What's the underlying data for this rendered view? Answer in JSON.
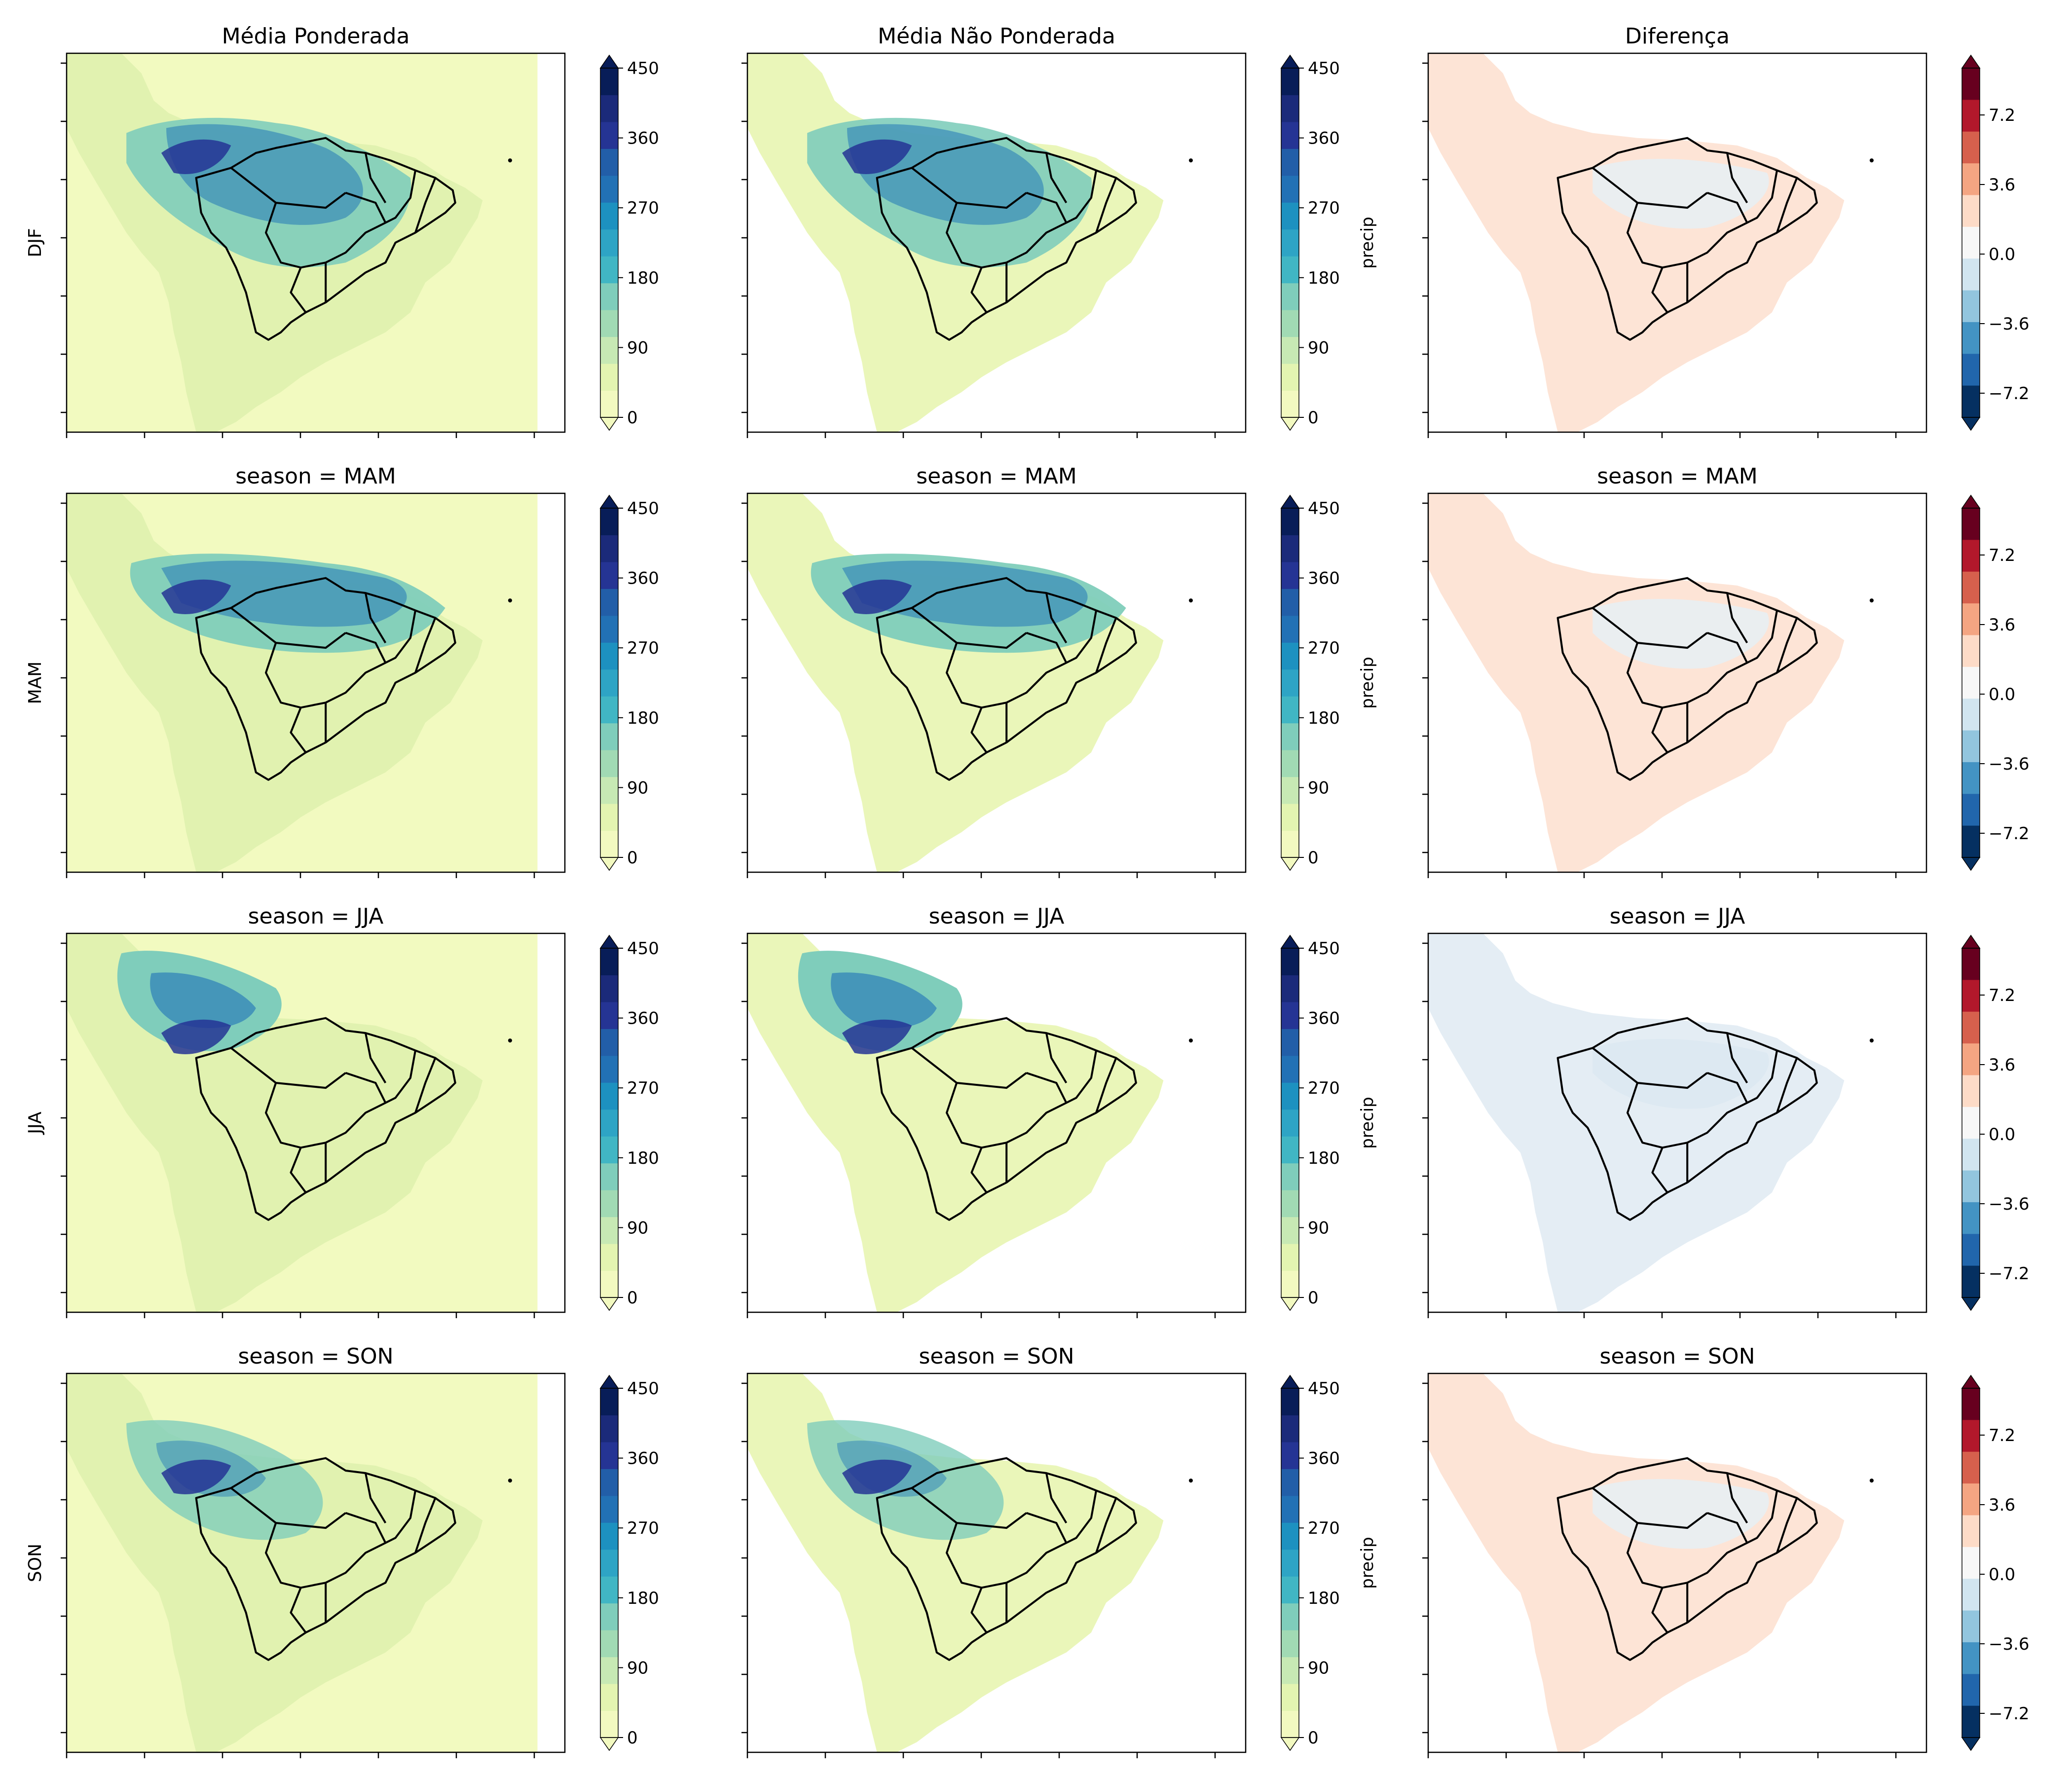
{
  "figure": {
    "column_titles": [
      "Média Ponderada",
      "Média Não Ponderada",
      "Diferença"
    ],
    "rows": [
      {
        "season": "DJF",
        "row_label": "DJF",
        "panel_title": ""
      },
      {
        "season": "MAM",
        "row_label": "MAM",
        "panel_title": "season = MAM"
      },
      {
        "season": "JJA",
        "row_label": "JJA",
        "panel_title": "season = JJA"
      },
      {
        "season": "SON",
        "row_label": "SON",
        "panel_title": "season = SON"
      }
    ],
    "precip_colorbar": {
      "ticks": [
        "0",
        "90",
        "180",
        "270",
        "360",
        "450"
      ],
      "label": "precip",
      "colors": [
        "#f2f9c0",
        "#e3f4b1",
        "#c7e9b4",
        "#a1dab4",
        "#7fcdbb",
        "#41b6c4",
        "#2ea4c5",
        "#1d91c0",
        "#2271b5",
        "#225ea8",
        "#253494",
        "#1b2a7a",
        "#081d58"
      ]
    },
    "diff_colorbar": {
      "ticks": [
        "7.2",
        "3.6",
        "0.0",
        "−3.6",
        "−7.2"
      ],
      "colors": [
        "#67001f",
        "#b2182b",
        "#d6604d",
        "#f4a582",
        "#fddbc7",
        "#f7f7f7",
        "#d1e5f0",
        "#92c5de",
        "#4393c3",
        "#2166ac",
        "#053061"
      ]
    }
  }
}
